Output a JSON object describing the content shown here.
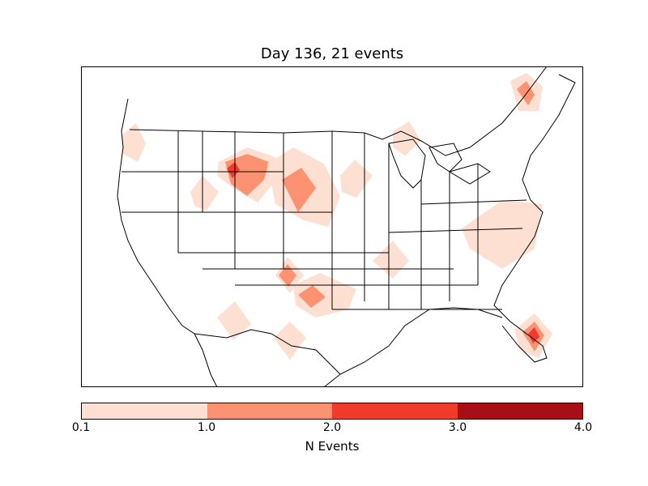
{
  "title": "Day 136, 21 events",
  "colorbar": {
    "label": "N Events",
    "ticks": [
      "0.1",
      "1.0",
      "2.0",
      "3.0",
      "4.0"
    ],
    "colors": [
      "#fee0d2",
      "#fc9272",
      "#ef3b2c",
      "#a50f15"
    ]
  },
  "hotspots": [
    {
      "region": "western-washington",
      "level": 1
    },
    {
      "region": "central-montana",
      "level": 3
    },
    {
      "region": "eastern-montana",
      "level": 2
    },
    {
      "region": "idaho-montana-border",
      "level": 1
    },
    {
      "region": "southwest-minnesota",
      "level": 1
    },
    {
      "region": "south-dakota",
      "level": 2
    },
    {
      "region": "iowa",
      "level": 1
    },
    {
      "region": "michigan-upper-peninsula",
      "level": 1
    },
    {
      "region": "new-york-north",
      "level": 2
    },
    {
      "region": "north-carolina",
      "level": 1
    },
    {
      "region": "virginia-coast",
      "level": 1
    },
    {
      "region": "arkansas",
      "level": 1
    },
    {
      "region": "northeast-new-mexico",
      "level": 2
    },
    {
      "region": "texas-panhandle",
      "level": 2
    },
    {
      "region": "southern-arizona",
      "level": 1
    },
    {
      "region": "west-texas",
      "level": 1
    },
    {
      "region": "south-florida",
      "level": 3
    }
  ]
}
